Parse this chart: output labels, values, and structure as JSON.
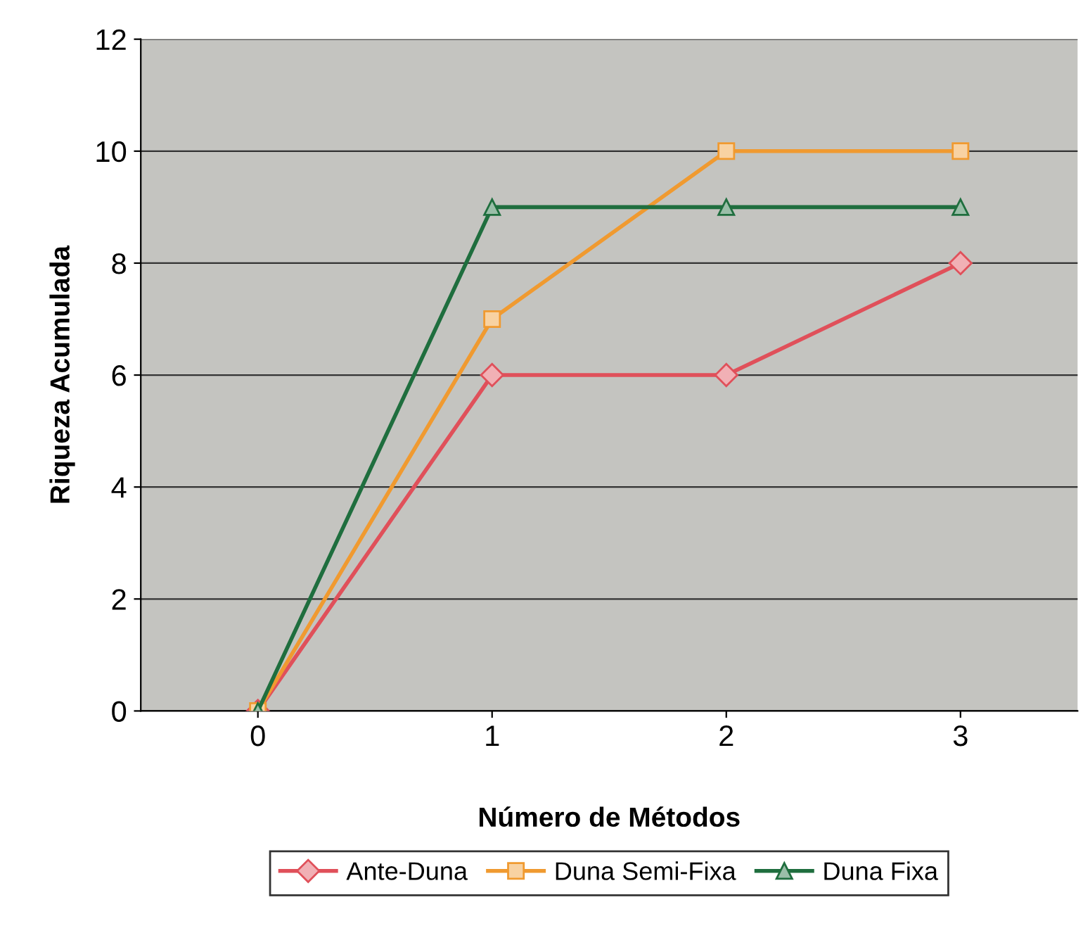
{
  "chart_data": {
    "type": "line",
    "xlabel": "Número de Métodos",
    "ylabel": "Riqueza Acumulada",
    "categories": [
      "0",
      "1",
      "2",
      "3"
    ],
    "series": [
      {
        "name": "Ante-Duna",
        "color": "#e0505a",
        "marker": "diamond",
        "values": [
          0,
          6,
          6,
          8
        ]
      },
      {
        "name": "Duna Semi-Fixa",
        "color": "#f09a30",
        "marker": "square",
        "values": [
          0,
          7,
          10,
          10
        ]
      },
      {
        "name": "Duna Fixa",
        "color": "#1f6e3e",
        "marker": "triangle",
        "values": [
          0,
          9,
          9,
          9
        ]
      }
    ],
    "ylim": [
      0,
      12
    ],
    "yticks": [
      0,
      2,
      4,
      6,
      8,
      10,
      12
    ],
    "grid": "y",
    "legend": "bottom",
    "line_style": "solid"
  }
}
